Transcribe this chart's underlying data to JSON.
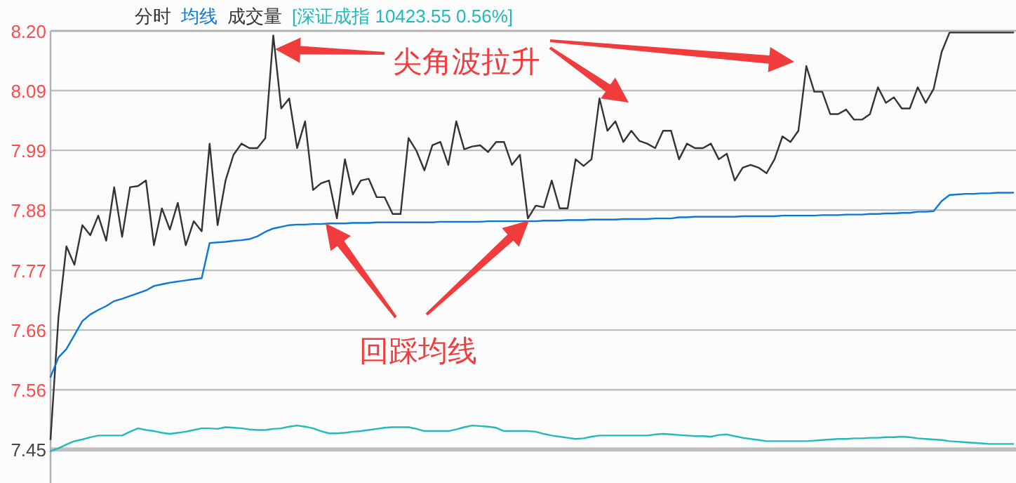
{
  "chart_data": {
    "type": "line",
    "categories": [
      null,
      null,
      null,
      null,
      null,
      null,
      null,
      null,
      null,
      null,
      null,
      null,
      null,
      null,
      null,
      null,
      null,
      null,
      null,
      null,
      null,
      null,
      null,
      null,
      null,
      null,
      null,
      null,
      null,
      null,
      null,
      null,
      null,
      null,
      null,
      null,
      null,
      null,
      null,
      null,
      null,
      null,
      null,
      null,
      null,
      null,
      null,
      null,
      null,
      null,
      null,
      null,
      null,
      null,
      null,
      null,
      null,
      null,
      null,
      null,
      null,
      null,
      null,
      null,
      null,
      null,
      null,
      null,
      null,
      null,
      null,
      null,
      null,
      null,
      null,
      null,
      null,
      null,
      null,
      null,
      null,
      null,
      null,
      null,
      null,
      null,
      null,
      null,
      null,
      null,
      null,
      null,
      null,
      null,
      null,
      null,
      null,
      null,
      null,
      null,
      null,
      null,
      null,
      null,
      null,
      null,
      null,
      null,
      null,
      null,
      null,
      null,
      null,
      null,
      null,
      null,
      null,
      null,
      null,
      null,
      null,
      null
    ],
    "ylim": [
      7.39,
      8.2
    ],
    "yticks": [
      {
        "value": 8.2,
        "label": "8.20"
      },
      {
        "value": 8.093,
        "label": "8.09"
      },
      {
        "value": 7.986,
        "label": "7.99"
      },
      {
        "value": 7.879,
        "label": "7.88"
      },
      {
        "value": 7.771,
        "label": "7.77"
      },
      {
        "value": 7.664,
        "label": "7.66"
      },
      {
        "value": 7.557,
        "label": "7.56"
      },
      {
        "value": 7.45,
        "label": "7.45"
      }
    ],
    "ref_lines": [
      {
        "axis": "y",
        "value": 7.45,
        "color": "#c0c0c0",
        "line_style": "solid"
      }
    ],
    "tick_labels": "y",
    "grid": "y",
    "marker": "none",
    "line_style": "solid",
    "annotations": [
      "成交量",
      "尖角波拉升",
      "回踩均线"
    ],
    "series": [
      {
        "name": "分时",
        "color": "#333333",
        "values": [
          7.468,
          7.687,
          7.814,
          7.781,
          7.852,
          7.834,
          7.869,
          7.824,
          7.92,
          7.831,
          7.92,
          7.922,
          7.932,
          7.816,
          7.882,
          7.844,
          7.892,
          7.816,
          7.859,
          7.841,
          7.998,
          7.852,
          7.932,
          7.978,
          7.998,
          7.99,
          7.99,
          8.008,
          8.192,
          8.061,
          8.079,
          7.99,
          8.038,
          7.915,
          7.927,
          7.932,
          7.864,
          7.97,
          7.907,
          7.932,
          7.935,
          7.902,
          7.902,
          7.872,
          7.872,
          8.008,
          7.985,
          7.95,
          7.995,
          8.001,
          7.96,
          8.038,
          7.988,
          7.993,
          7.995,
          7.983,
          8.001,
          8.001,
          7.96,
          7.978,
          7.864,
          7.887,
          7.884,
          7.932,
          7.882,
          7.882,
          7.97,
          7.958,
          7.97,
          8.079,
          8.021,
          8.038,
          8.001,
          8.021,
          8.003,
          7.998,
          7.99,
          8.021,
          8.021,
          7.97,
          7.998,
          7.99,
          7.99,
          7.998,
          7.97,
          7.98,
          7.932,
          7.955,
          7.96,
          7.955,
          7.945,
          7.97,
          8.011,
          8.001,
          8.021,
          8.137,
          8.091,
          8.091,
          8.051,
          8.051,
          8.059,
          8.041,
          8.041,
          8.051,
          8.099,
          8.071,
          8.081,
          8.061,
          8.061,
          8.099,
          8.071,
          8.096,
          8.162,
          8.197,
          8.197,
          8.197,
          8.197,
          8.197,
          8.197,
          8.197,
          8.197,
          8.197
        ]
      },
      {
        "name": "均线",
        "color": "#0a78d8",
        "values": [
          7.58,
          7.615,
          7.63,
          7.655,
          7.68,
          7.692,
          7.7,
          7.707,
          7.716,
          7.72,
          7.725,
          7.73,
          7.735,
          7.743,
          7.746,
          7.749,
          7.751,
          7.753,
          7.755,
          7.757,
          7.82,
          7.821,
          7.822,
          7.824,
          7.825,
          7.827,
          7.832,
          7.84,
          7.846,
          7.849,
          7.852,
          7.853,
          7.853,
          7.854,
          7.854,
          7.855,
          7.855,
          7.855,
          7.856,
          7.856,
          7.856,
          7.857,
          7.857,
          7.857,
          7.857,
          7.857,
          7.857,
          7.857,
          7.857,
          7.858,
          7.858,
          7.858,
          7.858,
          7.858,
          7.858,
          7.859,
          7.859,
          7.859,
          7.859,
          7.859,
          7.859,
          7.859,
          7.86,
          7.86,
          7.86,
          7.861,
          7.861,
          7.861,
          7.862,
          7.862,
          7.862,
          7.862,
          7.863,
          7.863,
          7.863,
          7.863,
          7.864,
          7.864,
          7.864,
          7.866,
          7.866,
          7.867,
          7.867,
          7.867,
          7.867,
          7.867,
          7.867,
          7.868,
          7.868,
          7.868,
          7.868,
          7.868,
          7.869,
          7.869,
          7.869,
          7.869,
          7.869,
          7.87,
          7.87,
          7.87,
          7.871,
          7.871,
          7.871,
          7.872,
          7.872,
          7.873,
          7.873,
          7.874,
          7.874,
          7.876,
          7.876,
          7.877,
          7.895,
          7.906,
          7.907,
          7.908,
          7.908,
          7.909,
          7.909,
          7.91,
          7.91,
          7.91
        ]
      },
      {
        "name": "[深证成指 10423.55 0.56%]",
        "color": "#20baba",
        "values": [
          7.447,
          7.452,
          7.459,
          7.465,
          7.468,
          7.472,
          7.475,
          7.475,
          7.475,
          7.475,
          7.482,
          7.488,
          7.485,
          7.483,
          7.48,
          7.478,
          7.48,
          7.482,
          7.485,
          7.488,
          7.488,
          7.487,
          7.49,
          7.489,
          7.488,
          7.486,
          7.485,
          7.485,
          7.487,
          7.488,
          7.491,
          7.493,
          7.491,
          7.488,
          7.483,
          7.479,
          7.479,
          7.48,
          7.482,
          7.483,
          7.485,
          7.487,
          7.489,
          7.49,
          7.49,
          7.49,
          7.487,
          7.483,
          7.483,
          7.483,
          7.483,
          7.486,
          7.49,
          7.493,
          7.492,
          7.491,
          7.489,
          7.483,
          7.483,
          7.483,
          7.483,
          7.482,
          7.478,
          7.475,
          7.473,
          7.471,
          7.469,
          7.47,
          7.473,
          7.475,
          7.475,
          7.475,
          7.475,
          7.475,
          7.475,
          7.475,
          7.477,
          7.478,
          7.477,
          7.476,
          7.475,
          7.474,
          7.474,
          7.473,
          7.476,
          7.477,
          7.474,
          7.471,
          7.469,
          7.467,
          7.465,
          7.465,
          7.465,
          7.465,
          7.465,
          7.465,
          7.466,
          7.467,
          7.468,
          7.469,
          7.469,
          7.47,
          7.47,
          7.471,
          7.471,
          7.472,
          7.472,
          7.473,
          7.472,
          7.47,
          7.469,
          7.468,
          7.467,
          7.465,
          7.464,
          7.463,
          7.462,
          7.461,
          7.46,
          7.46,
          7.46,
          7.46
        ]
      }
    ]
  }
}
